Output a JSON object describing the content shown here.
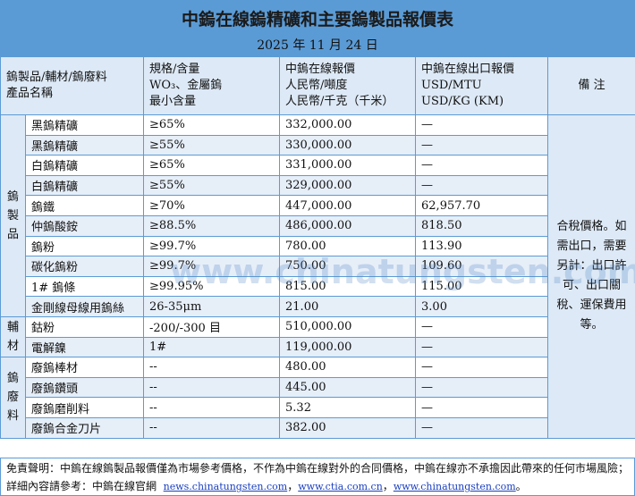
{
  "title": "中鎢在線鎢精礦和主要鎢製品報價表",
  "date": "2025 年 11 月 24 日",
  "header": {
    "col1": [
      "鎢製品/輔材/鎢廢料",
      "產品名稱"
    ],
    "col2": [
      "規格/含量",
      "WO₃、金屬鎢",
      "最小含量"
    ],
    "col3": [
      "中鎢在線報價",
      "人民幣/噸度",
      "人民幣/千克（千米）"
    ],
    "col4": [
      "中鎢在線出口報價",
      "USD/MTU",
      "USD/KG (KM)"
    ],
    "col5": "備 注"
  },
  "groups": {
    "products": "鎢製品",
    "aux": "輔材",
    "scrap": "鎢廢料"
  },
  "rows": [
    {
      "name": "黑鎢精礦",
      "spec": "≥65%",
      "price": "332,000.00",
      "export": "—"
    },
    {
      "name": "黑鎢精礦",
      "spec": "≥55%",
      "price": "330,000.00",
      "export": "—"
    },
    {
      "name": "白鎢精礦",
      "spec": "≥65%",
      "price": "331,000.00",
      "export": "—"
    },
    {
      "name": "白鎢精礦",
      "spec": "≥55%",
      "price": "329,000.00",
      "export": "—"
    },
    {
      "name": "鎢鐵",
      "spec": "≥70%",
      "price": "447,000.00",
      "export": "62,957.70"
    },
    {
      "name": "仲鎢酸銨",
      "spec": "≥88.5%",
      "price": "486,000.00",
      "export": "818.50"
    },
    {
      "name": "鎢粉",
      "spec": "≥99.7%",
      "price": "780.00",
      "export": "113.90"
    },
    {
      "name": "碳化鎢粉",
      "spec": "≥99.7%",
      "price": "750.00",
      "export": "109.60"
    },
    {
      "name": "1# 鎢條",
      "spec": "≥99.95%",
      "price": "815.00",
      "export": "115.00"
    },
    {
      "name": "金剛線母線用鎢絲",
      "spec": "26-35μm",
      "price": "21.00",
      "export": "3.00"
    },
    {
      "name": "鈷粉",
      "spec": "-200/-300 目",
      "price": "510,000.00",
      "export": "—"
    },
    {
      "name": "電解鎳",
      "spec": "1#",
      "price": "119,000.00",
      "export": "—"
    },
    {
      "name": "廢鎢棒材",
      "spec": "--",
      "price": "480.00",
      "export": "—"
    },
    {
      "name": "廢鎢鑽頭",
      "spec": "--",
      "price": "445.00",
      "export": "—"
    },
    {
      "name": "廢鎢磨削料",
      "spec": "--",
      "price": "5.32",
      "export": "—"
    },
    {
      "name": "廢鎢合金刀片",
      "spec": "--",
      "price": "382.00",
      "export": "—"
    }
  ],
  "note": "合稅價格。如需出口，需要另計：出口許可、出口關稅、運保費用等。",
  "footer": {
    "disclaimer": "免責聲明：中鎢在線鎢製品報價僅為市場參考價格，不作為中鎢在線對外的合同價格，中鎢在線亦不承擔因此帶來的任何市場風險；",
    "ref_label": "詳細內容請參考：中鎢在線官網",
    "links": [
      "news.chinatungsten.com",
      "www.ctia.com.cn",
      "www.chinatungsten.com"
    ],
    "sep": "，",
    "end": "。"
  },
  "watermark": "www.chinatungsten.com",
  "colors": {
    "header_blue": "#5b9bd5",
    "light_blue": "#dde9f6"
  }
}
